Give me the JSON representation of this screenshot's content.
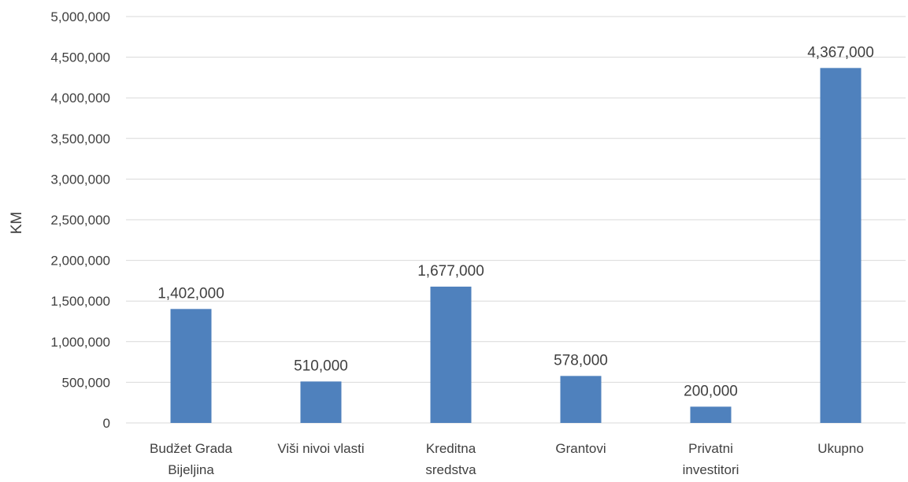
{
  "chart_data": {
    "type": "bar",
    "title": "",
    "xlabel": "",
    "ylabel": "KM",
    "categories": [
      [
        "Budžet Grada",
        "Bijeljina"
      ],
      [
        "Viši nivoi vlasti"
      ],
      [
        "Kreditna",
        "sredstva"
      ],
      [
        "Grantovi"
      ],
      [
        "Privatni",
        "investitori"
      ],
      [
        "Ukupno"
      ]
    ],
    "values": [
      1402000,
      510000,
      1677000,
      578000,
      200000,
      4367000
    ],
    "data_labels": [
      "1,402,000",
      "510,000",
      "1,677,000",
      "578,000",
      "200,000",
      "4,367,000"
    ],
    "ylim": [
      0,
      5000000
    ],
    "yticks": [
      0,
      500000,
      1000000,
      1500000,
      2000000,
      2500000,
      3000000,
      3500000,
      4000000,
      4500000,
      5000000
    ],
    "ytick_labels": [
      "0",
      "500,000",
      "1,000,000",
      "1,500,000",
      "2,000,000",
      "2,500,000",
      "3,000,000",
      "3,500,000",
      "4,000,000",
      "4,500,000",
      "5,000,000"
    ],
    "grid": true,
    "legend": "none",
    "colors": {
      "bar": "#4f81bd",
      "grid": "#d9d9d9",
      "text": "#404040"
    }
  }
}
